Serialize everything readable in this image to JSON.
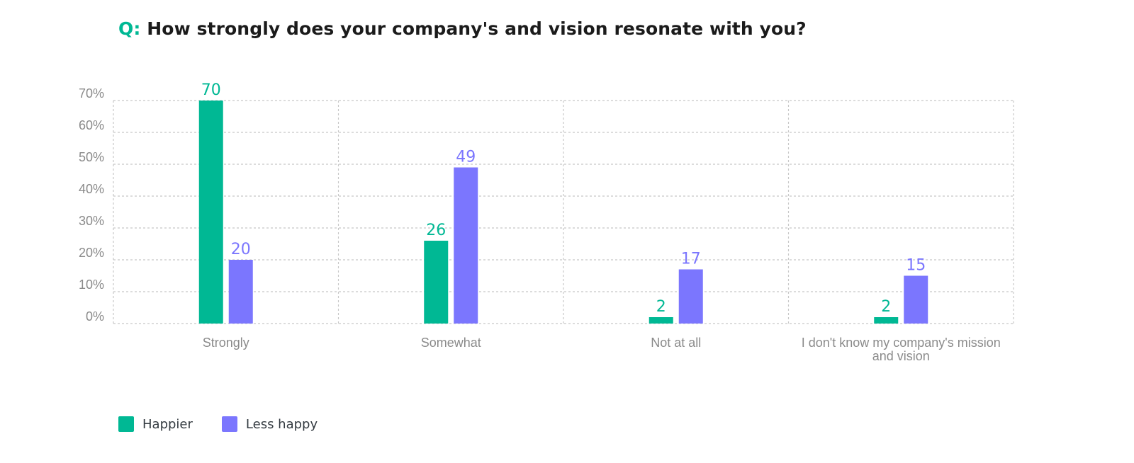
{
  "title": {
    "prefix": "Q:",
    "text": "How strongly does your company's and vision resonate with you?"
  },
  "colors": {
    "happier": "#00b894",
    "less_happy": "#7b76fe",
    "grid": "#c8c8c8",
    "axis_text": "#8a8a8a"
  },
  "chart_data": {
    "type": "bar",
    "categories": [
      "Strongly",
      "Somewhat",
      "Not at all",
      "I don't know my company's mission and vision"
    ],
    "category_lines": [
      [
        "Strongly"
      ],
      [
        "Somewhat"
      ],
      [
        "Not at all"
      ],
      [
        "I don't know my company's mission",
        "and vision"
      ]
    ],
    "series": [
      {
        "name": "Happier",
        "values": [
          70,
          26,
          2,
          2
        ],
        "color": "#00b894"
      },
      {
        "name": "Less happy",
        "values": [
          20,
          49,
          17,
          15
        ],
        "color": "#7b76fe"
      }
    ],
    "yticks": [
      "0%",
      "10%",
      "20%",
      "30%",
      "40%",
      "50%",
      "60%",
      "70%"
    ],
    "ylim": [
      0,
      70
    ],
    "grid": true,
    "legend_position": "bottom-left"
  }
}
